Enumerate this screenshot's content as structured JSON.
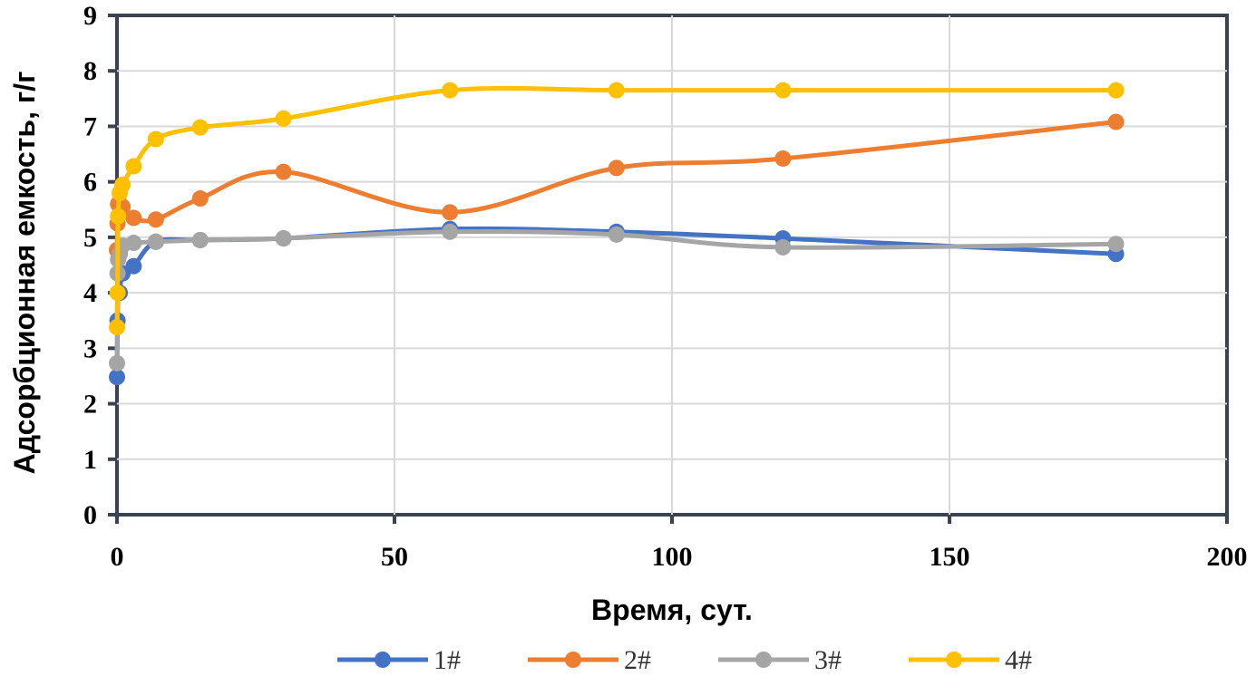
{
  "chart_data": {
    "type": "line",
    "title": "",
    "xlabel": "Время, сут.",
    "ylabel": "Адсорбционная емкость, г/г",
    "xlim": [
      0,
      200
    ],
    "ylim": [
      0,
      9
    ],
    "xticks": [
      0,
      50,
      100,
      150,
      200
    ],
    "yticks": [
      0,
      1,
      2,
      3,
      4,
      5,
      6,
      7,
      8,
      9
    ],
    "grid": true,
    "legend_position": "bottom",
    "x": [
      0,
      0.1,
      0.2,
      0.5,
      1,
      3,
      7,
      15,
      30,
      60,
      90,
      120,
      180
    ],
    "series": [
      {
        "name": "1#",
        "color": "#4472C4",
        "values": [
          2.48,
          3.5,
          4.0,
          4.0,
          4.35,
          4.48,
          4.92,
          4.95,
          4.98,
          5.15,
          5.1,
          4.98,
          4.7
        ]
      },
      {
        "name": "2#",
        "color": "#ED7D31",
        "values": [
          4.77,
          5.25,
          5.6,
          5.6,
          5.55,
          5.35,
          5.32,
          5.7,
          6.18,
          5.45,
          6.25,
          6.42,
          7.08
        ]
      },
      {
        "name": "3#",
        "color": "#A5A5A5",
        "values": [
          2.73,
          4.35,
          4.6,
          4.7,
          4.85,
          4.9,
          4.92,
          4.95,
          4.98,
          5.1,
          5.05,
          4.82,
          4.88
        ]
      },
      {
        "name": "4#",
        "color": "#FFC000",
        "values": [
          3.38,
          4.0,
          5.38,
          5.8,
          5.95,
          6.28,
          6.77,
          6.98,
          7.14,
          7.65,
          7.65,
          7.65,
          7.65
        ]
      }
    ]
  }
}
